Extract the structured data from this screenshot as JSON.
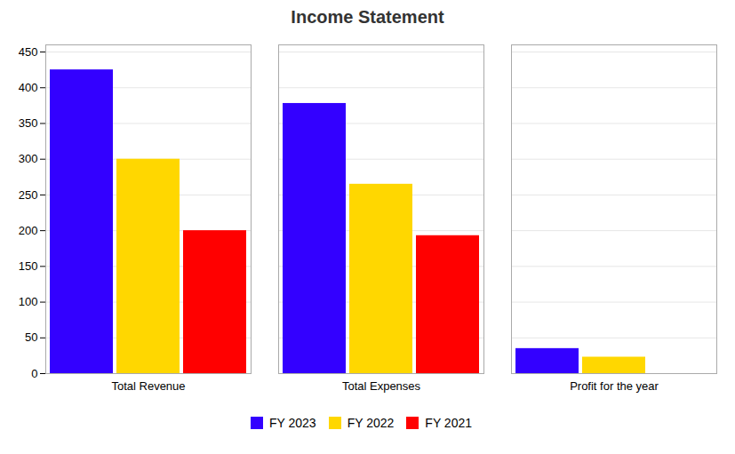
{
  "chart_data": {
    "type": "bar",
    "title": "Income Statement",
    "categories": [
      "Total Revenue",
      "Total Expenses",
      "Profit for the year"
    ],
    "series": [
      {
        "name": "FY 2023",
        "color": "#3300FF",
        "values": [
          425,
          378,
          35
        ]
      },
      {
        "name": "FY 2022",
        "color": "#FFD700",
        "values": [
          300,
          265,
          23
        ]
      },
      {
        "name": "FY 2021",
        "color": "#FF0000",
        "values": [
          200,
          193,
          0
        ]
      }
    ],
    "ylim": [
      0,
      460
    ],
    "yticks": [
      0,
      50,
      100,
      150,
      200,
      250,
      300,
      350,
      400,
      450
    ],
    "grid": true,
    "legend": "bottom"
  }
}
